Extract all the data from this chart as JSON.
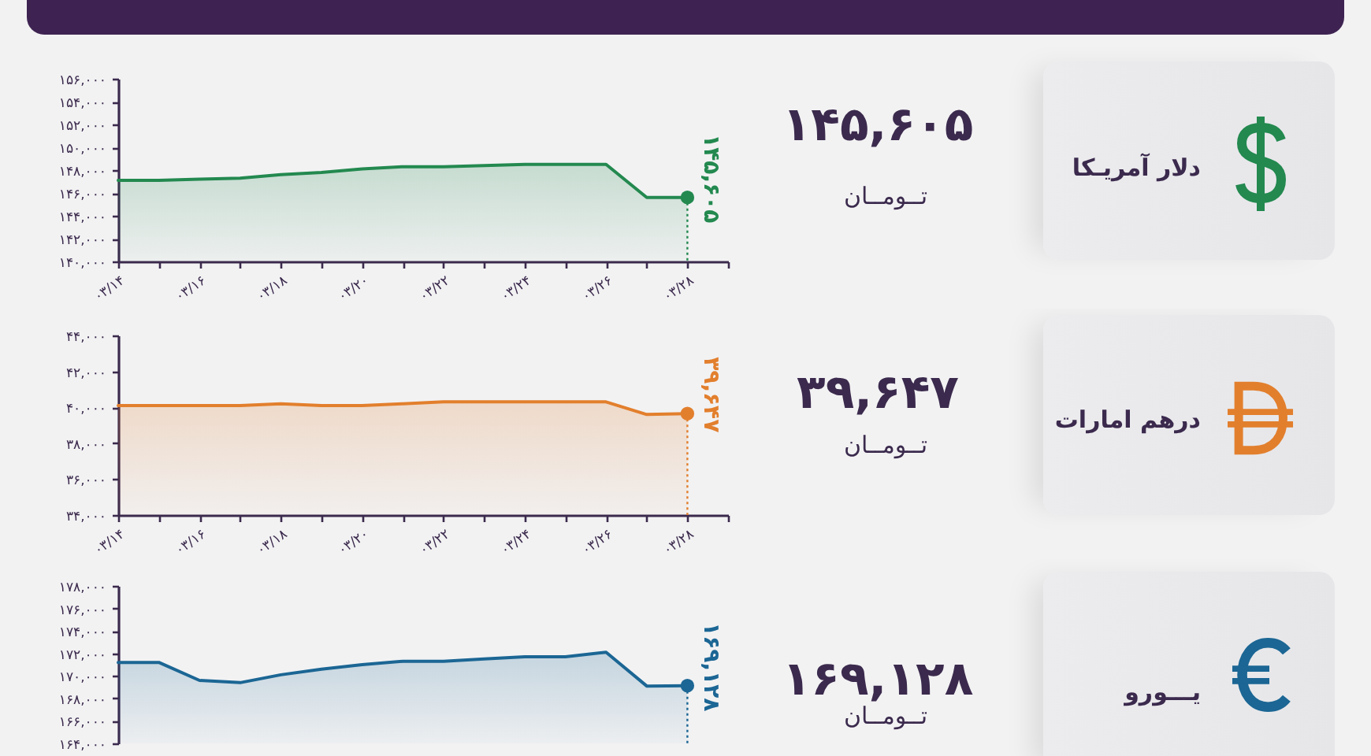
{
  "chart_data": [
    {
      "type": "other",
      "title": "دلار آمریـکا",
      "annotations": [
        "۱۴۵,۶۰۵",
        "تــومــان"
      ]
    },
    {
      "type": "area",
      "categories": [
        "۰۳/۱۴",
        null,
        "۰۳/۱۶",
        null,
        "۰۳/۱۸",
        null,
        "۰۳/۲۰",
        null,
        "۰۳/۲۲",
        null,
        "۰۳/۲۴",
        null,
        "۰۳/۲۶",
        null,
        "۰۳/۲۸",
        null
      ],
      "ylim": [
        140000,
        156000
      ],
      "yticks": [
        {
          "value": 140000,
          "label": "۱۴۰,۰۰۰"
        },
        {
          "value": 142000,
          "label": "۱۴۲,۰۰۰"
        },
        {
          "value": 144000,
          "label": "۱۴۴,۰۰۰"
        },
        {
          "value": 146000,
          "label": "۱۴۶,۰۰۰"
        },
        {
          "value": 148000,
          "label": "۱۴۸,۰۰۰"
        },
        {
          "value": 150000,
          "label": "۱۵۰,۰۰۰"
        },
        {
          "value": 152000,
          "label": "۱۵۲,۰۰۰"
        },
        {
          "value": 154000,
          "label": "۱۵۴,۰۰۰"
        },
        {
          "value": 156000,
          "label": "۱۵۶,۰۰۰"
        }
      ],
      "grid": false,
      "series": [
        {
          "type": "area",
          "color": "#23894f",
          "values": [
            147100,
            147100,
            147200,
            147300,
            147600,
            147800,
            148100,
            148300,
            148300,
            148400,
            148500,
            148500,
            148500,
            145600,
            145605,
            null
          ]
        },
        {
          "type": "lollipop",
          "color": "#23894f",
          "line_style": "dotted",
          "values": [
            null,
            null,
            null,
            null,
            null,
            null,
            null,
            null,
            null,
            null,
            null,
            null,
            null,
            null,
            145605,
            null
          ],
          "value_labels": [
            null,
            null,
            null,
            null,
            null,
            null,
            null,
            null,
            null,
            null,
            null,
            null,
            null,
            null,
            "۱۴۵,۶۰۵",
            null
          ]
        }
      ]
    },
    {
      "type": "other",
      "title": "درهم امارات",
      "annotations": [
        "۳۹,۶۴۷",
        "تــومــان"
      ]
    },
    {
      "type": "area",
      "categories": [
        "۰۳/۱۴",
        null,
        "۰۳/۱۶",
        null,
        "۰۳/۱۸",
        null,
        "۰۳/۲۰",
        null,
        "۰۳/۲۲",
        null,
        "۰۳/۲۴",
        null,
        "۰۳/۲۶",
        null,
        "۰۳/۲۸",
        null
      ],
      "ylim": [
        34000,
        44000
      ],
      "yticks": [
        {
          "value": 34000,
          "label": "۳۴,۰۰۰"
        },
        {
          "value": 36000,
          "label": "۳۶,۰۰۰"
        },
        {
          "value": 38000,
          "label": "۳۸,۰۰۰"
        },
        {
          "value": 40000,
          "label": "۴۰,۰۰۰"
        },
        {
          "value": 42000,
          "label": "۴۲,۰۰۰"
        },
        {
          "value": 44000,
          "label": "۴۴,۰۰۰"
        }
      ],
      "grid": false,
      "series": [
        {
          "type": "area",
          "color": "#e27f2d",
          "values": [
            40100,
            40100,
            40100,
            40100,
            40200,
            40100,
            40100,
            40200,
            40300,
            40300,
            40300,
            40300,
            40300,
            39600,
            39647,
            null
          ]
        },
        {
          "type": "lollipop",
          "color": "#e27f2d",
          "line_style": "dotted",
          "values": [
            null,
            null,
            null,
            null,
            null,
            null,
            null,
            null,
            null,
            null,
            null,
            null,
            null,
            null,
            39647,
            null
          ],
          "value_labels": [
            null,
            null,
            null,
            null,
            null,
            null,
            null,
            null,
            null,
            null,
            null,
            null,
            null,
            null,
            "۳۹,۶۴۷",
            null
          ]
        }
      ]
    },
    {
      "type": "other",
      "title": "یـــورو",
      "annotations": [
        "۱۶۹,۱۲۸",
        "تــومــان"
      ]
    },
    {
      "type": "area",
      "categories": [
        null,
        null,
        null,
        null,
        null,
        null,
        null,
        null,
        null,
        null,
        null,
        null,
        null,
        null,
        null,
        null
      ],
      "ylim": [
        164000,
        178000
      ],
      "yticks": [
        {
          "value": 164000,
          "label": "۱۶۴,۰۰۰"
        },
        {
          "value": 166000,
          "label": "۱۶۶,۰۰۰"
        },
        {
          "value": 168000,
          "label": "۱۶۸,۰۰۰"
        },
        {
          "value": 170000,
          "label": "۱۷۰,۰۰۰"
        },
        {
          "value": 172000,
          "label": "۱۷۲,۰۰۰"
        },
        {
          "value": 174000,
          "label": "۱۷۴,۰۰۰"
        },
        {
          "value": 176000,
          "label": "۱۷۶,۰۰۰"
        },
        {
          "value": 178000,
          "label": "۱۷۸,۰۰۰"
        }
      ],
      "grid": false,
      "series": [
        {
          "type": "area",
          "color": "#1b6694",
          "values": [
            171200,
            171200,
            169600,
            169400,
            170100,
            170600,
            171000,
            171300,
            171300,
            171500,
            171700,
            171700,
            172100,
            169100,
            169128,
            null
          ]
        },
        {
          "type": "lollipop",
          "color": "#1b6694",
          "line_style": "dotted",
          "values": [
            null,
            null,
            null,
            null,
            null,
            null,
            null,
            null,
            null,
            null,
            null,
            null,
            null,
            null,
            169128,
            null
          ],
          "value_labels": [
            null,
            null,
            null,
            null,
            null,
            null,
            null,
            null,
            null,
            null,
            null,
            null,
            null,
            null,
            "۱۶۹,۱۲۸",
            null
          ]
        }
      ]
    }
  ]
}
